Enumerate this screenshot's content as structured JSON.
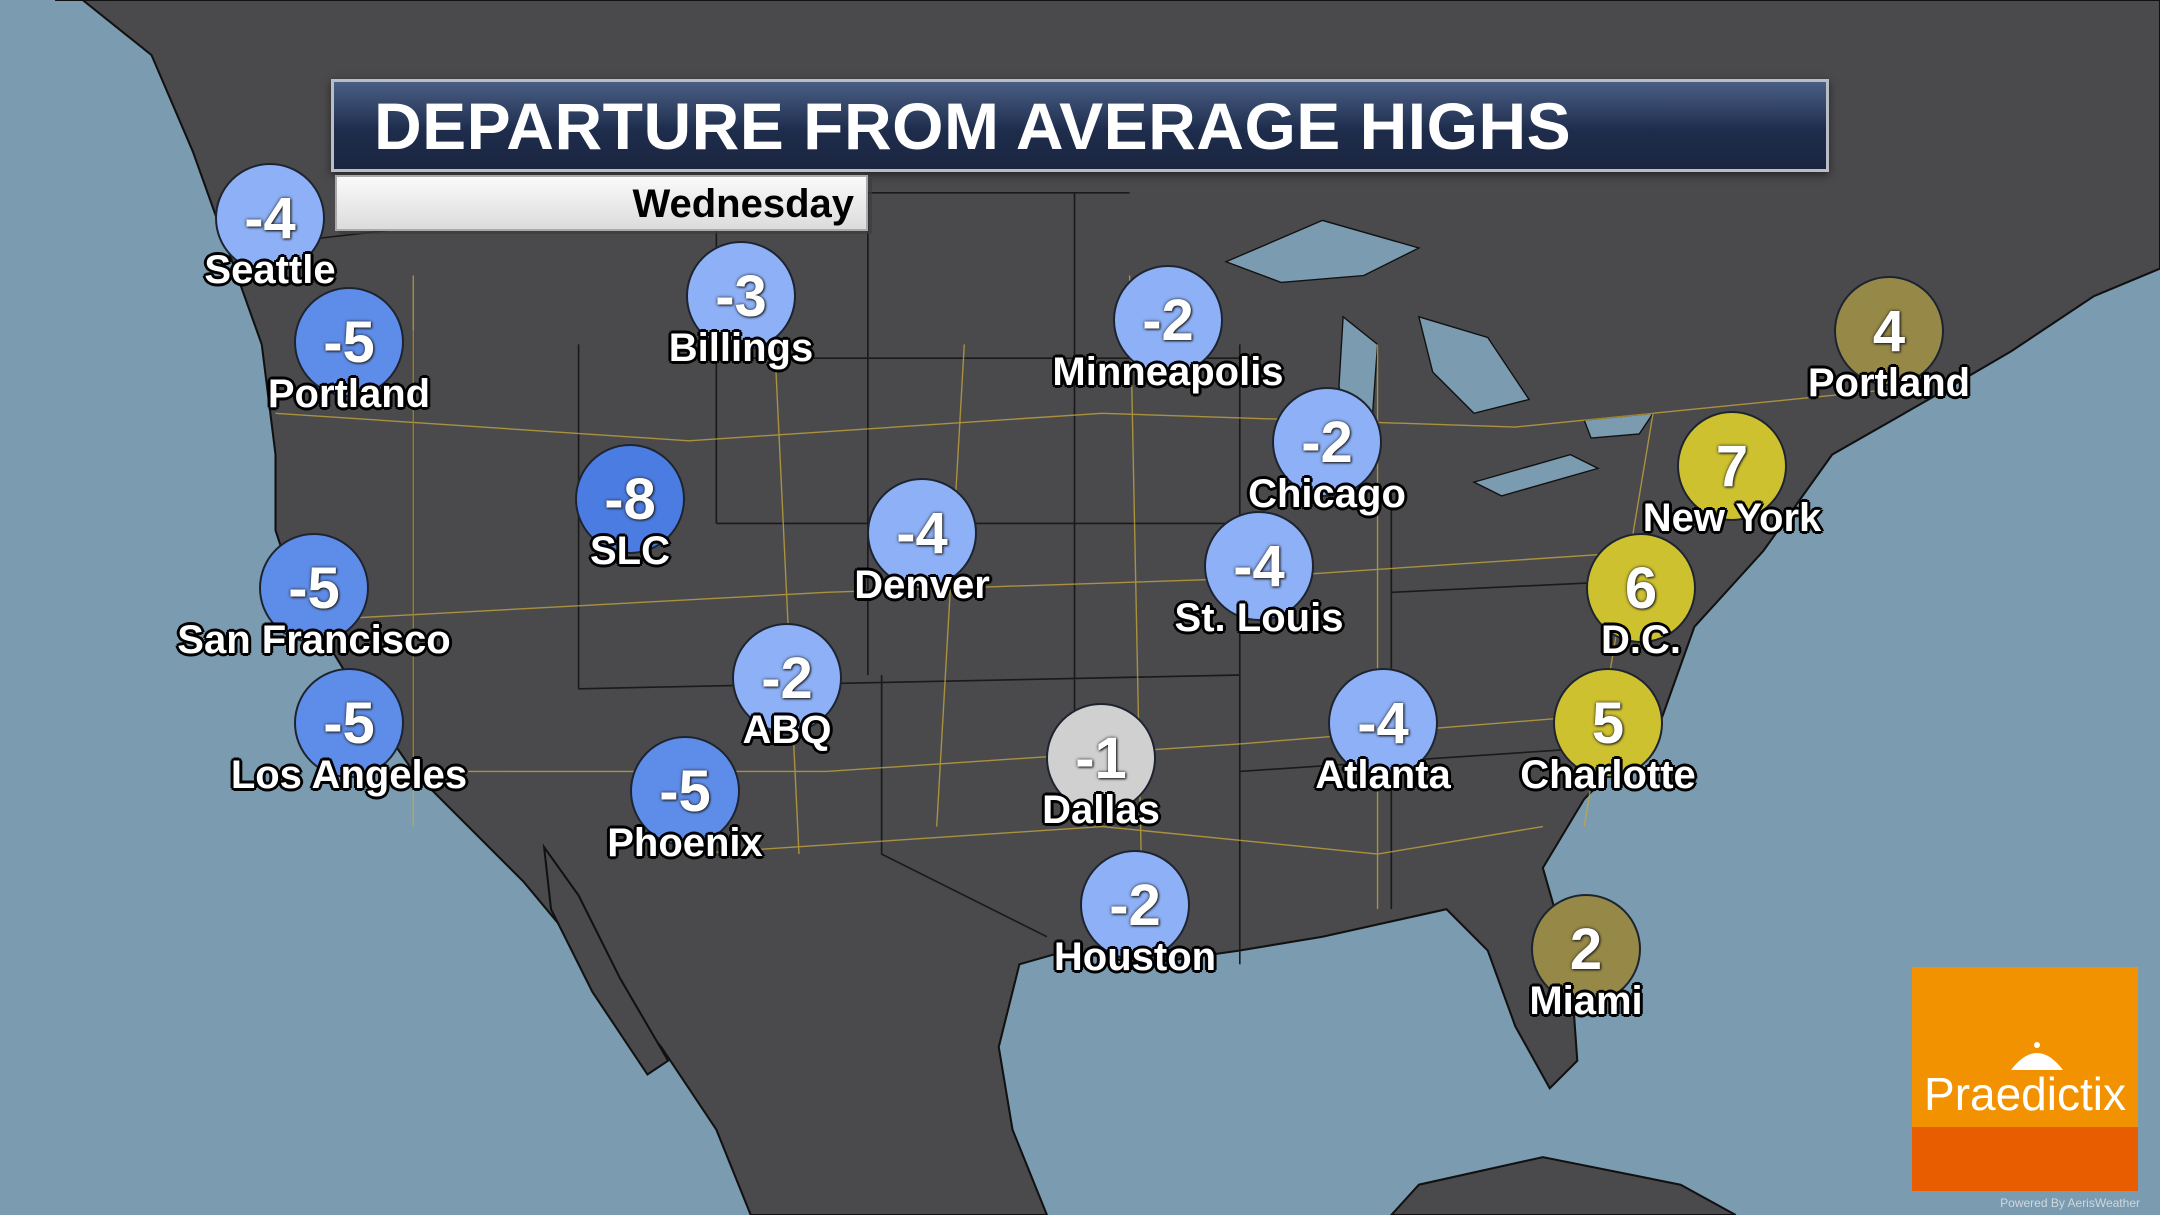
{
  "header": {
    "title": "DEPARTURE FROM AVERAGE HIGHS",
    "day": "Wednesday"
  },
  "colors": {
    "land": "#4a4a4c",
    "water": "#7b9cb0",
    "roads": "#c9a93a",
    "light_blue": "#8db0f6",
    "medium_blue": "#5e8de9",
    "dark_blue": "#4b7ce2",
    "grey": "#d0d0d0",
    "yellow": "#cec12f",
    "olive": "#968846"
  },
  "cities": [
    {
      "name": "Seattle",
      "value": "-4",
      "tone": "light_blue"
    },
    {
      "name": "Portland",
      "value": "-5",
      "tone": "medium_blue"
    },
    {
      "name": "Billings",
      "value": "-3",
      "tone": "light_blue"
    },
    {
      "name": "Minneapolis",
      "value": "-2",
      "tone": "light_blue"
    },
    {
      "name": "Chicago",
      "value": "-2",
      "tone": "light_blue"
    },
    {
      "name": "SLC",
      "value": "-8",
      "tone": "dark_blue"
    },
    {
      "name": "Denver",
      "value": "-4",
      "tone": "light_blue"
    },
    {
      "name": "St. Louis",
      "value": "-4",
      "tone": "light_blue"
    },
    {
      "name": "San Francisco",
      "value": "-5",
      "tone": "medium_blue"
    },
    {
      "name": "ABQ",
      "value": "-2",
      "tone": "light_blue"
    },
    {
      "name": "Los Angeles",
      "value": "-5",
      "tone": "medium_blue"
    },
    {
      "name": "Phoenix",
      "value": "-5",
      "tone": "medium_blue"
    },
    {
      "name": "Dallas",
      "value": "-1",
      "tone": "grey"
    },
    {
      "name": "Atlanta",
      "value": "-4",
      "tone": "light_blue"
    },
    {
      "name": "Houston",
      "value": "-2",
      "tone": "light_blue"
    },
    {
      "name": "Portland",
      "value": "4",
      "tone": "olive"
    },
    {
      "name": "New York",
      "value": "7",
      "tone": "yellow"
    },
    {
      "name": "D.C.",
      "value": "6",
      "tone": "yellow"
    },
    {
      "name": "Charlotte",
      "value": "5",
      "tone": "yellow"
    },
    {
      "name": "Miami",
      "value": "2",
      "tone": "olive"
    }
  ],
  "logo": {
    "text": "Praedictix",
    "icon": "umbrella-icon",
    "powered_by": "Powered By AerisWeather"
  }
}
